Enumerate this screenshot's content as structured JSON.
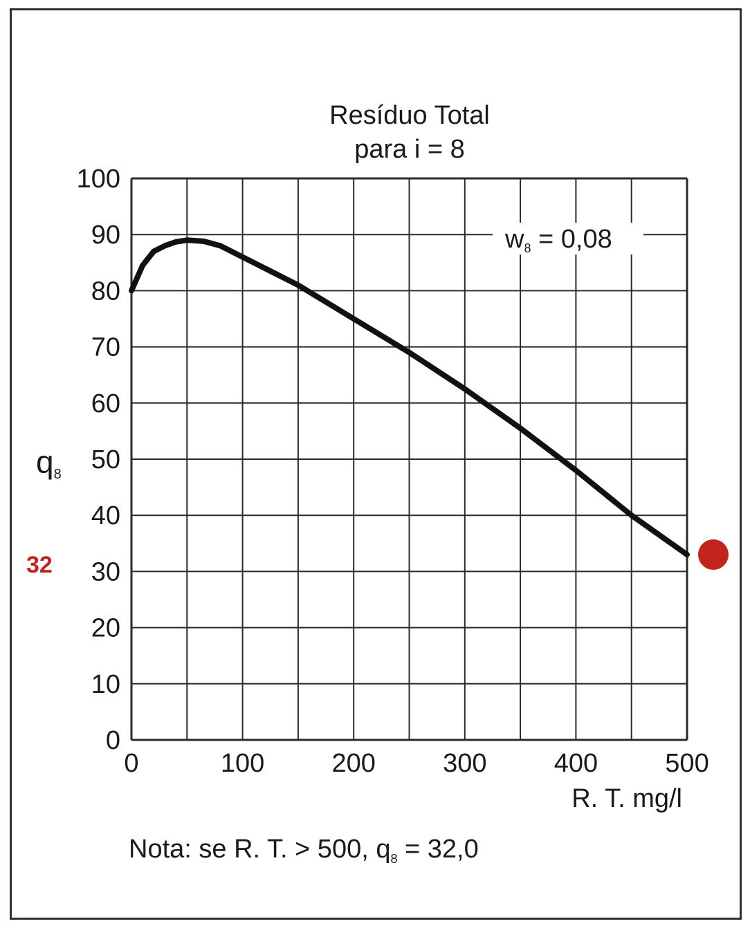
{
  "chart_data": {
    "type": "line",
    "title": "Resíduo Total",
    "subtitle": "para i = 8",
    "ylabel": {
      "main": "q",
      "sub": "8"
    },
    "xlabel": "R. T. mg/l",
    "annotation": {
      "main": "w",
      "sub": "8",
      "rest": " = 0,08"
    },
    "note": {
      "prefix": "Nota: se R. T. > 500, q",
      "sub": "8",
      "suffix": "  =  32,0"
    },
    "xlim": [
      0,
      500
    ],
    "ylim": [
      0,
      100
    ],
    "x_ticks": [
      "0",
      "100",
      "200",
      "300",
      "400",
      "500"
    ],
    "y_ticks": [
      "0",
      "10",
      "20",
      "30",
      "40",
      "50",
      "60",
      "70",
      "80",
      "90",
      "100"
    ],
    "grid": true,
    "series": [
      {
        "x": [
          0,
          10,
          20,
          30,
          40,
          50,
          65,
          80,
          100,
          125,
          150,
          200,
          250,
          300,
          350,
          400,
          450,
          500
        ],
        "y": [
          80,
          84.5,
          87,
          88,
          88.7,
          89,
          88.8,
          88,
          86,
          83.5,
          81,
          75,
          69,
          62.5,
          55.5,
          48,
          40,
          33
        ]
      }
    ],
    "marker": {
      "label": "32",
      "color": "#c0241c"
    },
    "line_color": "#111111",
    "grid_color": "#2a2a2a"
  }
}
